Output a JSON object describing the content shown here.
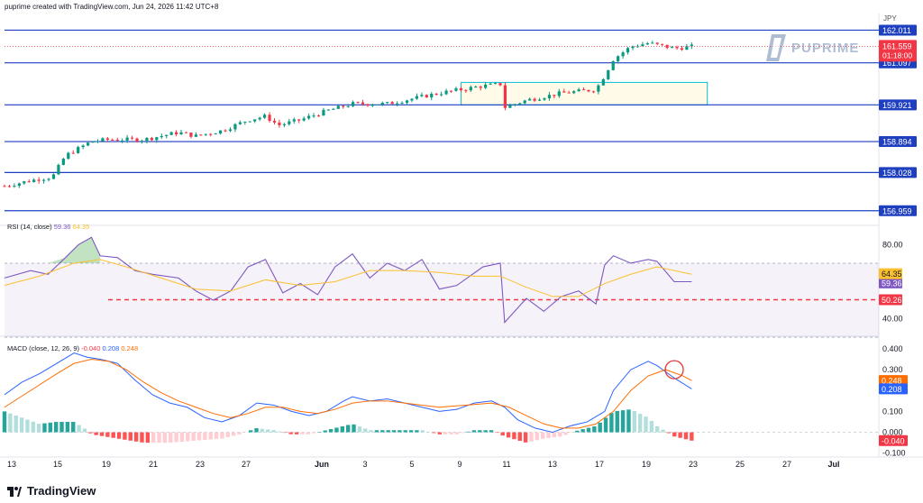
{
  "header": {
    "text": "puprime created with TradingView.com, Jun 24, 2026 11:42 UTC+8"
  },
  "footer": {
    "brand": "TradingView",
    "brand_icon": "tradingview-logo-icon"
  },
  "watermark": {
    "text": "PUPRIME",
    "icon": "puprime-logo-icon"
  },
  "colors": {
    "up": "#089981",
    "down": "#f23645",
    "level": "#1e3fbf",
    "rsi": "#7e57c2",
    "rsi_ma": "#fbc02d",
    "macd": "#2962ff",
    "signal": "#ff6d00",
    "hist_up_strong": "#26a69a",
    "hist_up_weak": "#b2dfdb",
    "hist_down_strong": "#ff5252",
    "hist_down_weak": "#ffcdd2",
    "box": "#00bcd4"
  },
  "chart_data": [
    {
      "type": "candlestick",
      "currency": "JPY",
      "ylim": [
        156.6,
        162.3
      ],
      "x_ticks": [
        "13",
        "15",
        "19",
        "21",
        "23",
        "27",
        "Jun",
        "3",
        "5",
        "9",
        "11",
        "13",
        "17",
        "19",
        "23",
        "25",
        "27",
        "Jul"
      ],
      "levels": [
        162.011,
        161.097,
        159.921,
        158.894,
        158.028,
        156.959
      ],
      "level_labels": [
        "162.011",
        "161.097",
        "159.921",
        "158.894",
        "158.028",
        "156.959"
      ],
      "last_price": {
        "value": 161.559,
        "label": "161.559",
        "countdown": "01:18:00"
      },
      "box": {
        "x_start": 0.525,
        "x_end": 0.808,
        "y_low": 159.92,
        "y_high": 160.55
      },
      "anchors": [
        [
          0,
          157.65
        ],
        [
          0.04,
          157.85
        ],
        [
          0.055,
          157.9
        ],
        [
          0.07,
          158.5
        ],
        [
          0.1,
          158.9
        ],
        [
          0.12,
          158.95
        ],
        [
          0.16,
          158.95
        ],
        [
          0.2,
          159.15
        ],
        [
          0.22,
          159.05
        ],
        [
          0.25,
          159.2
        ],
        [
          0.28,
          159.5
        ],
        [
          0.3,
          159.6
        ],
        [
          0.315,
          159.35
        ],
        [
          0.34,
          159.5
        ],
        [
          0.37,
          159.75
        ],
        [
          0.4,
          159.95
        ],
        [
          0.44,
          159.95
        ],
        [
          0.47,
          160.1
        ],
        [
          0.5,
          160.25
        ],
        [
          0.55,
          160.45
        ],
        [
          0.57,
          160.5
        ],
        [
          0.575,
          159.85
        ],
        [
          0.6,
          160.05
        ],
        [
          0.64,
          160.25
        ],
        [
          0.68,
          160.35
        ],
        [
          0.69,
          160.75
        ],
        [
          0.7,
          161.2
        ],
        [
          0.72,
          161.55
        ],
        [
          0.74,
          161.65
        ],
        [
          0.75,
          161.6
        ],
        [
          0.77,
          161.5
        ],
        [
          0.79,
          161.55
        ]
      ]
    },
    {
      "type": "line",
      "title": "RSI (14, close)",
      "legend_values": [
        "59.36",
        "64.35"
      ],
      "ylim": [
        32,
        88
      ],
      "y_ticks": [
        "80.00",
        "40.00"
      ],
      "band": [
        30,
        70
      ],
      "reference_line": {
        "value": 50.26,
        "label": "50.26"
      },
      "series": [
        {
          "name": "RSI",
          "last": 59.36,
          "last_label": "59.36",
          "values": [
            [
              0,
              62
            ],
            [
              0.03,
              66
            ],
            [
              0.05,
              64
            ],
            [
              0.07,
              73
            ],
            [
              0.085,
              80
            ],
            [
              0.1,
              84
            ],
            [
              0.11,
              74
            ],
            [
              0.13,
              73
            ],
            [
              0.15,
              66
            ],
            [
              0.17,
              64
            ],
            [
              0.2,
              62
            ],
            [
              0.22,
              55
            ],
            [
              0.24,
              50
            ],
            [
              0.26,
              55
            ],
            [
              0.28,
              68
            ],
            [
              0.3,
              72
            ],
            [
              0.32,
              54
            ],
            [
              0.34,
              59
            ],
            [
              0.36,
              53
            ],
            [
              0.38,
              68
            ],
            [
              0.4,
              75
            ],
            [
              0.42,
              62
            ],
            [
              0.44,
              70
            ],
            [
              0.46,
              66
            ],
            [
              0.48,
              72
            ],
            [
              0.5,
              56
            ],
            [
              0.52,
              58
            ],
            [
              0.55,
              68
            ],
            [
              0.57,
              70
            ],
            [
              0.575,
              38
            ],
            [
              0.6,
              51
            ],
            [
              0.62,
              44
            ],
            [
              0.64,
              52
            ],
            [
              0.66,
              55
            ],
            [
              0.68,
              48
            ],
            [
              0.69,
              69
            ],
            [
              0.7,
              74
            ],
            [
              0.72,
              70
            ],
            [
              0.74,
              72
            ],
            [
              0.75,
              71
            ],
            [
              0.77,
              60
            ],
            [
              0.79,
              60
            ]
          ]
        },
        {
          "name": "RSI MA",
          "last": 64.35,
          "last_label": "64.35",
          "values": [
            [
              0,
              58
            ],
            [
              0.04,
              63
            ],
            [
              0.08,
              70
            ],
            [
              0.11,
              72
            ],
            [
              0.14,
              68
            ],
            [
              0.18,
              62
            ],
            [
              0.22,
              56
            ],
            [
              0.26,
              55
            ],
            [
              0.3,
              61
            ],
            [
              0.34,
              58
            ],
            [
              0.38,
              60
            ],
            [
              0.42,
              66
            ],
            [
              0.46,
              66
            ],
            [
              0.5,
              65
            ],
            [
              0.54,
              63
            ],
            [
              0.57,
              63
            ],
            [
              0.6,
              57
            ],
            [
              0.63,
              52
            ],
            [
              0.66,
              52
            ],
            [
              0.69,
              59
            ],
            [
              0.72,
              64
            ],
            [
              0.75,
              68
            ],
            [
              0.79,
              64
            ]
          ]
        }
      ]
    },
    {
      "type": "line+bar",
      "title": "MACD (close, 12, 26, 9)",
      "legend_values": [
        "-0.040",
        "0.208",
        "0.248"
      ],
      "ylim": [
        -0.11,
        0.43
      ],
      "y_ticks": [
        "0.400",
        "0.300",
        "0.100",
        "0.000",
        "-0.100"
      ],
      "annotation": {
        "shape": "circle",
        "x": 0.77,
        "value": 0.3
      },
      "series": [
        {
          "name": "MACD",
          "last": 0.208,
          "last_label": "0.208",
          "values": [
            [
              0,
              0.18
            ],
            [
              0.02,
              0.24
            ],
            [
              0.04,
              0.28
            ],
            [
              0.06,
              0.33
            ],
            [
              0.08,
              0.38
            ],
            [
              0.095,
              0.36
            ],
            [
              0.11,
              0.35
            ],
            [
              0.13,
              0.33
            ],
            [
              0.15,
              0.25
            ],
            [
              0.17,
              0.18
            ],
            [
              0.19,
              0.14
            ],
            [
              0.21,
              0.12
            ],
            [
              0.23,
              0.07
            ],
            [
              0.25,
              0.05
            ],
            [
              0.27,
              0.08
            ],
            [
              0.29,
              0.14
            ],
            [
              0.31,
              0.13
            ],
            [
              0.33,
              0.1
            ],
            [
              0.35,
              0.08
            ],
            [
              0.37,
              0.1
            ],
            [
              0.39,
              0.15
            ],
            [
              0.4,
              0.17
            ],
            [
              0.42,
              0.15
            ],
            [
              0.44,
              0.16
            ],
            [
              0.46,
              0.14
            ],
            [
              0.48,
              0.12
            ],
            [
              0.5,
              0.1
            ],
            [
              0.52,
              0.11
            ],
            [
              0.54,
              0.14
            ],
            [
              0.56,
              0.15
            ],
            [
              0.575,
              0.12
            ],
            [
              0.59,
              0.06
            ],
            [
              0.61,
              0.02
            ],
            [
              0.63,
              0.0
            ],
            [
              0.65,
              0.03
            ],
            [
              0.67,
              0.05
            ],
            [
              0.69,
              0.1
            ],
            [
              0.7,
              0.2
            ],
            [
              0.72,
              0.3
            ],
            [
              0.74,
              0.34
            ],
            [
              0.75,
              0.32
            ],
            [
              0.77,
              0.26
            ],
            [
              0.79,
              0.208
            ]
          ]
        },
        {
          "name": "Signal",
          "last": 0.248,
          "last_label": "0.248",
          "values": [
            [
              0,
              0.12
            ],
            [
              0.03,
              0.2
            ],
            [
              0.06,
              0.28
            ],
            [
              0.08,
              0.33
            ],
            [
              0.1,
              0.35
            ],
            [
              0.12,
              0.34
            ],
            [
              0.14,
              0.3
            ],
            [
              0.16,
              0.24
            ],
            [
              0.18,
              0.19
            ],
            [
              0.2,
              0.15
            ],
            [
              0.22,
              0.12
            ],
            [
              0.24,
              0.09
            ],
            [
              0.26,
              0.07
            ],
            [
              0.28,
              0.09
            ],
            [
              0.3,
              0.12
            ],
            [
              0.32,
              0.12
            ],
            [
              0.34,
              0.1
            ],
            [
              0.36,
              0.09
            ],
            [
              0.38,
              0.11
            ],
            [
              0.4,
              0.14
            ],
            [
              0.42,
              0.15
            ],
            [
              0.44,
              0.15
            ],
            [
              0.46,
              0.14
            ],
            [
              0.48,
              0.13
            ],
            [
              0.5,
              0.12
            ],
            [
              0.53,
              0.13
            ],
            [
              0.56,
              0.14
            ],
            [
              0.58,
              0.12
            ],
            [
              0.6,
              0.08
            ],
            [
              0.62,
              0.04
            ],
            [
              0.64,
              0.02
            ],
            [
              0.66,
              0.02
            ],
            [
              0.68,
              0.04
            ],
            [
              0.7,
              0.1
            ],
            [
              0.72,
              0.2
            ],
            [
              0.74,
              0.27
            ],
            [
              0.76,
              0.3
            ],
            [
              0.78,
              0.27
            ],
            [
              0.79,
              0.248
            ]
          ]
        },
        {
          "name": "Histogram",
          "last": -0.04,
          "last_label": "-0.040",
          "values": [
            [
              0,
              0.1
            ],
            [
              0.02,
              0.07
            ],
            [
              0.04,
              0.04
            ],
            [
              0.06,
              0.05
            ],
            [
              0.08,
              0.05
            ],
            [
              0.095,
              0.01
            ],
            [
              0.1,
              -0.01
            ],
            [
              0.13,
              -0.03
            ],
            [
              0.16,
              -0.05
            ],
            [
              0.19,
              -0.05
            ],
            [
              0.22,
              -0.04
            ],
            [
              0.25,
              -0.03
            ],
            [
              0.27,
              -0.01
            ],
            [
              0.29,
              0.02
            ],
            [
              0.31,
              0.01
            ],
            [
              0.33,
              -0.01
            ],
            [
              0.35,
              -0.01
            ],
            [
              0.37,
              0.01
            ],
            [
              0.4,
              0.04
            ],
            [
              0.42,
              0.01
            ],
            [
              0.45,
              0.01
            ],
            [
              0.48,
              0.01
            ],
            [
              0.5,
              -0.01
            ],
            [
              0.52,
              -0.01
            ],
            [
              0.54,
              0.01
            ],
            [
              0.56,
              0.01
            ],
            [
              0.575,
              -0.02
            ],
            [
              0.6,
              -0.05
            ],
            [
              0.62,
              -0.03
            ],
            [
              0.64,
              -0.02
            ],
            [
              0.66,
              0.01
            ],
            [
              0.68,
              0.03
            ],
            [
              0.7,
              0.1
            ],
            [
              0.72,
              0.11
            ],
            [
              0.74,
              0.07
            ],
            [
              0.75,
              0.03
            ],
            [
              0.77,
              -0.02
            ],
            [
              0.79,
              -0.04
            ]
          ]
        }
      ]
    }
  ]
}
